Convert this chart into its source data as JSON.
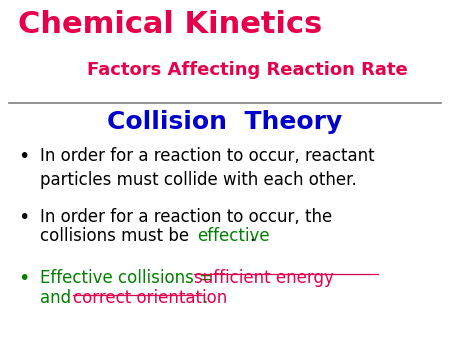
{
  "background_color": "#ffffff",
  "title_text": "Chemical Kinetics",
  "title_color": "#e6004c",
  "subtitle_text": "Factors Affecting Reaction Rate",
  "subtitle_color": "#e6004c",
  "section_title": "Collision  Theory",
  "section_title_color": "#0000cc",
  "bullet_color_1": "#000000",
  "bullet_color_2": "#000000",
  "bullet_color_3": "#008000",
  "green_color": "#008000",
  "red_color": "#e6004c",
  "black_color": "#000000",
  "line_color": "#808080",
  "font_size_title": 22,
  "font_size_subtitle": 13,
  "font_size_section": 18,
  "font_size_body": 12
}
